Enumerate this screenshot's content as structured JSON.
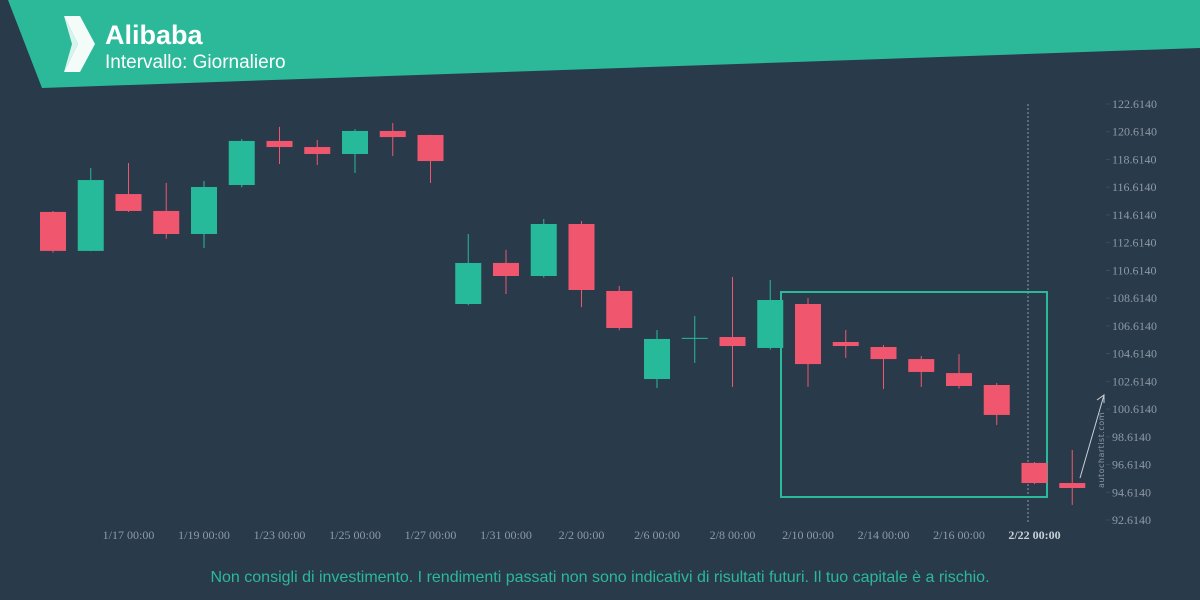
{
  "chart_data": {
    "type": "candlestick",
    "title": "Alibaba",
    "subtitle": "Intervallo: Giornaliero",
    "footer": "Non consigli di investimento. I rendimenti passati non sono indicativi di risultati futuri. Il tuo capitale è a rischio.",
    "watermark": "autochartist.com",
    "up_color": "#26b99a",
    "down_color": "#f0576e",
    "categories": [
      null,
      null,
      "1/17 00:00",
      null,
      "1/19 00:00",
      null,
      "1/23 00:00",
      null,
      "1/25 00:00",
      null,
      "1/27 00:00",
      null,
      "1/31 00:00",
      null,
      "2/2 00:00",
      null,
      "2/6 00:00",
      null,
      "2/8 00:00",
      null,
      "2/10 00:00",
      null,
      "2/14 00:00",
      null,
      "2/16 00:00",
      null,
      "2/22 00:00",
      null
    ],
    "open": [
      114.83,
      112.02,
      116.12,
      114.9,
      113.24,
      116.77,
      119.95,
      119.51,
      119.01,
      120.67,
      120.38,
      108.19,
      111.15,
      110.21,
      113.96,
      109.13,
      102.78,
      105.74,
      105.81,
      105.02,
      108.19,
      105.45,
      105.09,
      104.22,
      103.21,
      102.35,
      96.73,
      95.28
    ],
    "high": [
      114.9,
      118.0,
      118.36,
      116.92,
      117.06,
      120.09,
      120.96,
      120.02,
      120.8,
      121.24,
      120.4,
      113.24,
      112.09,
      114.32,
      114.18,
      109.49,
      106.32,
      107.33,
      110.14,
      109.92,
      108.62,
      106.32,
      105.23,
      104.44,
      104.58,
      102.49,
      96.8,
      97.66
    ],
    "low": [
      111.9,
      112.0,
      114.83,
      112.9,
      112.23,
      116.6,
      118.29,
      118.21,
      117.64,
      118.86,
      116.92,
      108.1,
      108.91,
      110.1,
      107.97,
      106.3,
      102.13,
      103.94,
      102.21,
      104.9,
      102.21,
      104.3,
      102.06,
      102.21,
      102.1,
      99.47,
      95.2,
      93.7
    ],
    "close": [
      112.02,
      117.13,
      114.9,
      113.24,
      116.63,
      119.95,
      119.51,
      119.01,
      120.67,
      120.23,
      118.5,
      111.15,
      110.21,
      113.96,
      109.2,
      106.46,
      105.67,
      105.75,
      105.16,
      108.48,
      103.86,
      105.16,
      104.22,
      103.29,
      102.28,
      100.19,
      95.28,
      94.92
    ],
    "ylim": [
      92.614,
      122.614
    ],
    "yticks": [
      {
        "value": 92.614,
        "label": "92.6140"
      },
      {
        "value": 94.614,
        "label": "94.6140"
      },
      {
        "value": 96.614,
        "label": "96.6140"
      },
      {
        "value": 98.614,
        "label": "98.6140"
      },
      {
        "value": 100.614,
        "label": "100.6140"
      },
      {
        "value": 102.614,
        "label": "102.6140"
      },
      {
        "value": 104.614,
        "label": "104.6140"
      },
      {
        "value": 106.614,
        "label": "106.6140"
      },
      {
        "value": 108.614,
        "label": "108.6140"
      },
      {
        "value": 110.614,
        "label": "110.6140"
      },
      {
        "value": 112.614,
        "label": "112.6140"
      },
      {
        "value": 114.614,
        "label": "114.6140"
      },
      {
        "value": 116.614,
        "label": "116.6140"
      },
      {
        "value": 118.614,
        "label": "118.6140"
      },
      {
        "value": 120.614,
        "label": "120.6140"
      },
      {
        "value": 122.614,
        "label": "122.6140"
      }
    ]
  }
}
